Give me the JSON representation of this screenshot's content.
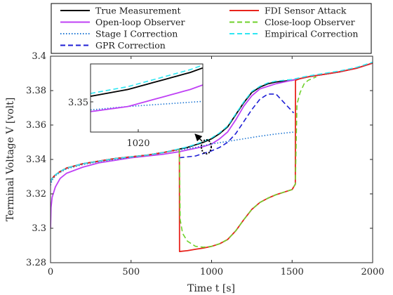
{
  "chart_data": {
    "type": "line",
    "xlabel": "Time t [s]",
    "ylabel": "Terminal Voltage V [volt]",
    "xlim": [
      0,
      2000
    ],
    "ylim": [
      3.28,
      3.4
    ],
    "xticks": [
      0,
      500,
      1000,
      1500,
      2000
    ],
    "yticks": [
      3.28,
      3.3,
      3.32,
      3.34,
      3.36,
      3.38,
      3.4
    ],
    "xtick_labels": [
      "0",
      "500",
      "1000",
      "1500",
      "2000"
    ],
    "ytick_labels": [
      "3.28",
      "3.3",
      "3.32",
      "3.34",
      "3.36",
      "3.38",
      "3.4"
    ],
    "grid": false,
    "legend_position": "top",
    "series": [
      {
        "name": "True Measurement",
        "color": "#000000",
        "style": "solid",
        "x": [
          0,
          10,
          30,
          60,
          100,
          200,
          300,
          400,
          500,
          600,
          700,
          800,
          850,
          900,
          950,
          1000,
          1050,
          1100,
          1150,
          1200,
          1250,
          1300,
          1350,
          1400,
          1450,
          1500,
          1550,
          1600,
          1700,
          1800,
          1900,
          2000
        ],
        "y": [
          3.327,
          3.329,
          3.331,
          3.333,
          3.335,
          3.3375,
          3.339,
          3.3405,
          3.3415,
          3.3425,
          3.344,
          3.346,
          3.347,
          3.3485,
          3.35,
          3.352,
          3.355,
          3.359,
          3.366,
          3.373,
          3.379,
          3.382,
          3.384,
          3.385,
          3.3855,
          3.386,
          3.387,
          3.388,
          3.3895,
          3.391,
          3.393,
          3.396
        ]
      },
      {
        "name": "Open-loop Observer",
        "color": "#bf40f5",
        "style": "solid",
        "x": [
          0,
          3,
          10,
          30,
          60,
          100,
          200,
          300,
          400,
          500,
          600,
          700,
          800,
          850,
          900,
          950,
          1000,
          1050,
          1100,
          1150,
          1200,
          1250,
          1300,
          1350,
          1400,
          1450,
          1500,
          1550,
          1600,
          1700,
          1800,
          1900,
          2000
        ],
        "y": [
          3.3,
          3.312,
          3.318,
          3.324,
          3.329,
          3.332,
          3.3355,
          3.338,
          3.3395,
          3.341,
          3.342,
          3.343,
          3.3445,
          3.3455,
          3.3465,
          3.3475,
          3.349,
          3.352,
          3.356,
          3.363,
          3.371,
          3.377,
          3.381,
          3.3825,
          3.384,
          3.385,
          3.386,
          3.387,
          3.388,
          3.3895,
          3.391,
          3.393,
          3.396
        ]
      },
      {
        "name": "Stage I Correction",
        "color": "#1f77d4",
        "style": "dotted",
        "x": [
          0,
          10,
          30,
          60,
          100,
          200,
          300,
          400,
          500,
          600,
          700,
          800,
          900,
          1000,
          1100,
          1200,
          1300,
          1400,
          1500,
          1520
        ],
        "y": [
          3.325,
          3.328,
          3.3305,
          3.3325,
          3.3345,
          3.337,
          3.3387,
          3.34,
          3.3412,
          3.3425,
          3.344,
          3.3455,
          3.347,
          3.349,
          3.3505,
          3.352,
          3.3535,
          3.3548,
          3.3558,
          3.356
        ]
      },
      {
        "name": "GPR Correction",
        "color": "#1f1fd6",
        "style": "dashed",
        "x": [
          800,
          900,
          950,
          1000,
          1050,
          1100,
          1150,
          1200,
          1250,
          1300,
          1350,
          1400,
          1450,
          1500,
          1510
        ],
        "y": [
          3.341,
          3.342,
          3.3435,
          3.345,
          3.347,
          3.35,
          3.355,
          3.362,
          3.369,
          3.375,
          3.378,
          3.378,
          3.373,
          3.368,
          3.367
        ]
      },
      {
        "name": "FDI Sensor Attack",
        "color": "#e8231c",
        "style": "solid",
        "x": [
          0,
          10,
          30,
          60,
          100,
          200,
          300,
          400,
          500,
          600,
          700,
          795,
          800,
          801,
          850,
          900,
          950,
          1000,
          1050,
          1100,
          1150,
          1200,
          1250,
          1300,
          1350,
          1400,
          1450,
          1500,
          1519,
          1520,
          1521,
          1550,
          1600,
          1700,
          1800,
          1900,
          2000
        ],
        "y": [
          3.327,
          3.329,
          3.331,
          3.333,
          3.335,
          3.3375,
          3.339,
          3.3405,
          3.3415,
          3.3425,
          3.344,
          3.3458,
          3.3459,
          3.2865,
          3.287,
          3.2878,
          3.2885,
          3.2895,
          3.291,
          3.2935,
          3.2985,
          3.305,
          3.311,
          3.315,
          3.3175,
          3.3195,
          3.321,
          3.3225,
          3.3255,
          3.3256,
          3.386,
          3.387,
          3.388,
          3.3895,
          3.391,
          3.393,
          3.396
        ]
      },
      {
        "name": "Close-loop Observer",
        "color": "#6fd12b",
        "style": "dashed",
        "x": [
          800,
          805,
          820,
          850,
          900,
          950,
          1000,
          1050,
          1100,
          1150,
          1200,
          1250,
          1300,
          1350,
          1400,
          1450,
          1500,
          1519,
          1520,
          1530,
          1550,
          1575,
          1600,
          1650
        ],
        "y": [
          3.3459,
          3.305,
          3.297,
          3.2925,
          3.2895,
          3.289,
          3.2895,
          3.291,
          3.2935,
          3.2985,
          3.305,
          3.311,
          3.315,
          3.3175,
          3.3195,
          3.321,
          3.3225,
          3.3255,
          3.3256,
          3.372,
          3.379,
          3.384,
          3.386,
          3.388
        ]
      },
      {
        "name": "Empirical Correction",
        "color": "#2ee6f2",
        "style": "dashed",
        "x": [
          0,
          10,
          30,
          60,
          100,
          200,
          300,
          400,
          500,
          600,
          700,
          800,
          850,
          900,
          950,
          1000,
          1050,
          1100,
          1150,
          1200,
          1250,
          1300,
          1350,
          1400,
          1450,
          1500,
          1550,
          1600,
          1700,
          1800,
          1900,
          2000
        ],
        "y": [
          3.327,
          3.329,
          3.331,
          3.333,
          3.335,
          3.3375,
          3.339,
          3.3405,
          3.3415,
          3.3425,
          3.344,
          3.3462,
          3.3473,
          3.3488,
          3.3505,
          3.3525,
          3.3555,
          3.3595,
          3.3665,
          3.3735,
          3.3795,
          3.3825,
          3.3845,
          3.3855,
          3.386,
          3.3865,
          3.3875,
          3.3885,
          3.39,
          3.3915,
          3.3935,
          3.3965
        ]
      }
    ],
    "inset": {
      "xtick_labels": [
        "1020"
      ],
      "ytick_labels": [
        "3.35"
      ]
    }
  }
}
